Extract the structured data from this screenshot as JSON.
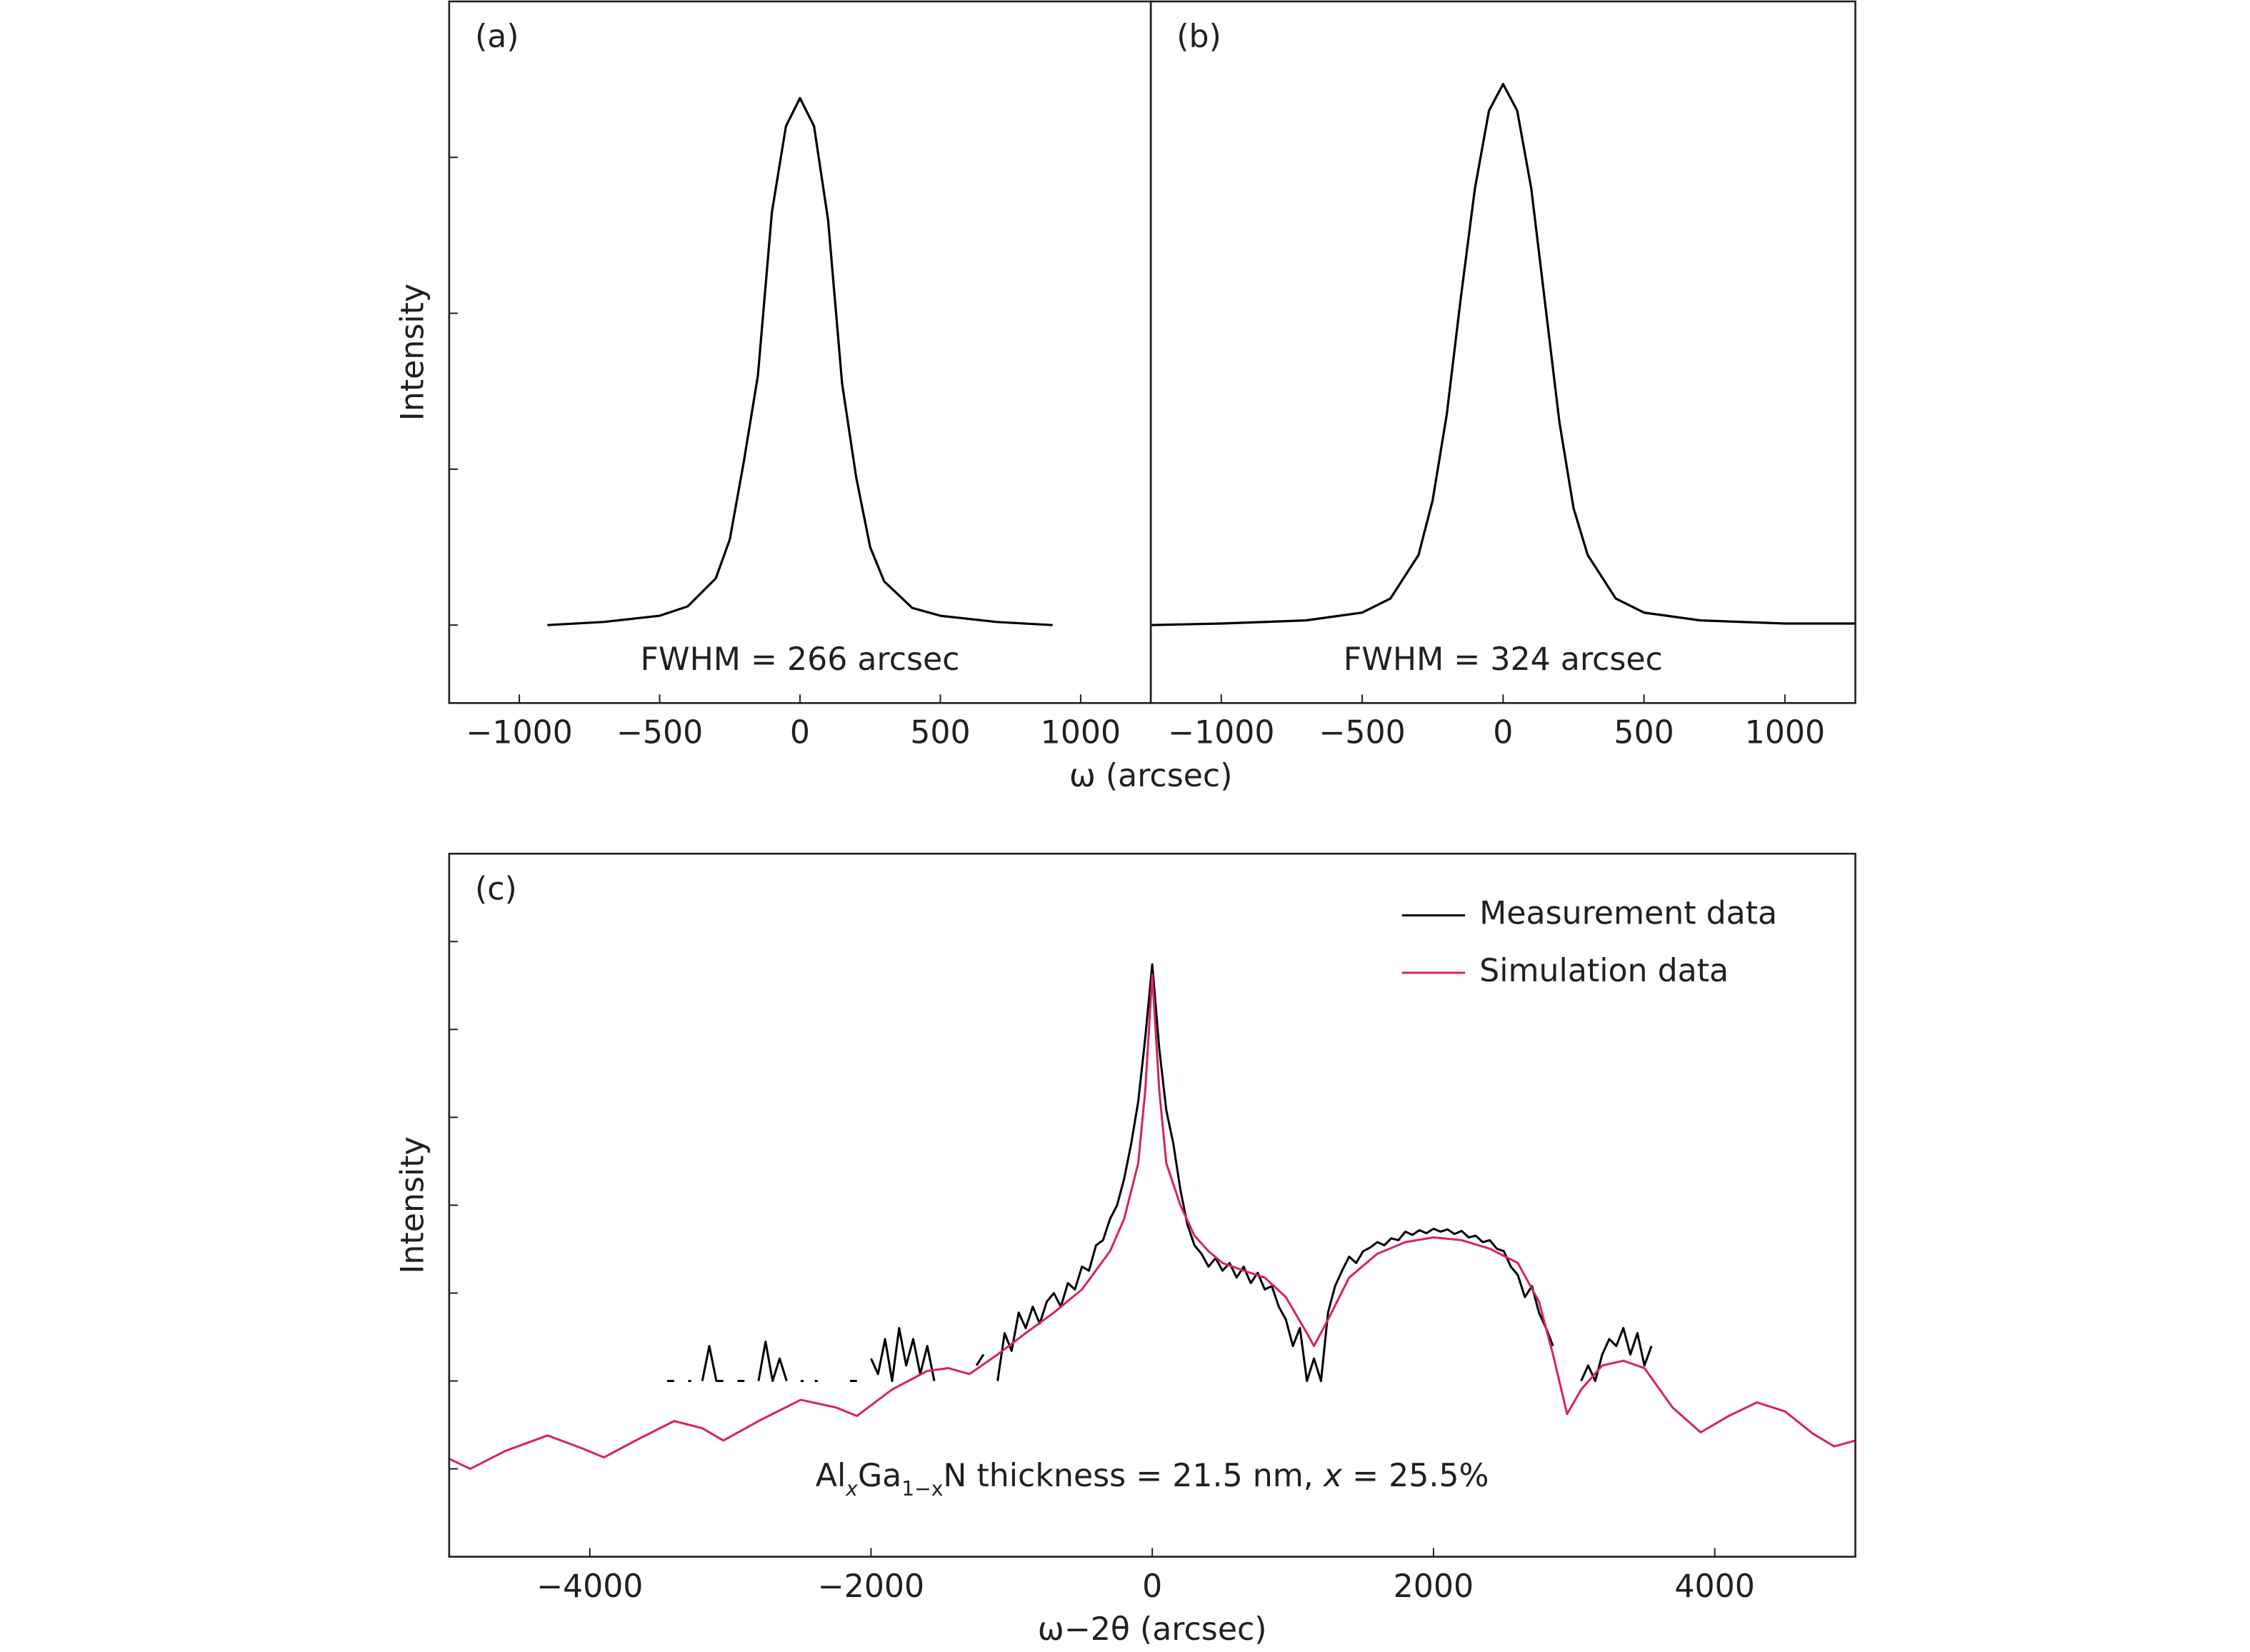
{
  "chart_data": [
    {
      "type": "line",
      "panel_label": "(a)",
      "annotation": "FWHM = 266 arcsec",
      "ylabel": "Intensity",
      "xlabel": "ω (arcsec)",
      "xlim": [
        -1250,
        1250
      ],
      "ylim": [
        -0.5,
        4
      ],
      "xticks": [
        {
          "value": -1000,
          "label": "−1000"
        },
        {
          "value": -500,
          "label": "−500"
        },
        0,
        500,
        1000
      ],
      "yticks": [
        0,
        1,
        2,
        3
      ],
      "color": "#000000",
      "x": [
        -900,
        -700,
        -500,
        -400,
        -300,
        -250,
        -200,
        -150,
        -100,
        -50,
        0,
        50,
        100,
        150,
        200,
        250,
        300,
        400,
        500,
        700,
        900
      ],
      "values": [
        0.0,
        0.02,
        0.06,
        0.12,
        0.3,
        0.55,
        1.05,
        1.6,
        2.65,
        3.2,
        3.38,
        3.2,
        2.6,
        1.55,
        0.95,
        0.5,
        0.28,
        0.11,
        0.06,
        0.02,
        0.0
      ]
    },
    {
      "type": "line",
      "panel_label": "(b)",
      "annotation": "FWHM = 324 arcsec",
      "xlim": [
        -1250,
        1250
      ],
      "ylim": [
        -0.5,
        4
      ],
      "xticks": [
        {
          "value": -1000,
          "label": "−1000"
        },
        {
          "value": -500,
          "label": "−500"
        },
        0,
        500,
        1000
      ],
      "color": "#000000",
      "x": [
        -1250,
        -1000,
        -700,
        -500,
        -400,
        -300,
        -250,
        -200,
        -150,
        -100,
        -50,
        0,
        50,
        100,
        150,
        200,
        250,
        300,
        400,
        500,
        700,
        1000,
        1250
      ],
      "values": [
        0.0,
        0.01,
        0.03,
        0.08,
        0.17,
        0.45,
        0.8,
        1.35,
        2.1,
        2.8,
        3.3,
        3.47,
        3.3,
        2.8,
        2.05,
        1.3,
        0.75,
        0.45,
        0.17,
        0.08,
        0.03,
        0.01,
        0.01
      ]
    },
    {
      "type": "line",
      "panel_label": "(c)",
      "ylabel": "Intensity",
      "xlabel": "ω−2θ (arcsec)",
      "annotation": [
        "Al",
        "x",
        "Ga",
        "1−x",
        "N thickness = 21.5 nm, ",
        "x",
        " = 25.5%"
      ],
      "xlim": [
        -5000,
        5000
      ],
      "ylim": [
        0.1,
        10000000
      ],
      "ylog": true,
      "legend": "upper right",
      "xticks": [
        {
          "value": -4000,
          "label": "−4000"
        },
        {
          "value": -2000,
          "label": "−2000"
        },
        0,
        2000,
        4000
      ],
      "yticks": [
        1,
        10,
        100,
        1000,
        10000,
        100000,
        1000000,
        10000000
      ],
      "series": [
        {
          "name": "Measurement data",
          "color": "#000000",
          "x": [
            -3450,
            -3400,
            -3350,
            -3300,
            -3250,
            -3200,
            -3150,
            -3100,
            -3050,
            -3000,
            -2950,
            -2900,
            -2850,
            -2800,
            -2750,
            -2700,
            -2650,
            -2600,
            -2550,
            -2500,
            -2450,
            -2400,
            -2350,
            -2300,
            -2250,
            -2200,
            -2150,
            -2100,
            -2050,
            -2000,
            -1950,
            -1900,
            -1850,
            -1800,
            -1750,
            -1700,
            -1650,
            -1600,
            -1550,
            -1500,
            -1450,
            -1400,
            -1350,
            -1300,
            -1250,
            -1200,
            -1150,
            -1100,
            -1050,
            -1000,
            -950,
            -900,
            -850,
            -800,
            -750,
            -700,
            -650,
            -600,
            -550,
            -500,
            -450,
            -400,
            -350,
            -300,
            -250,
            -200,
            -150,
            -100,
            -50,
            0,
            50,
            100,
            150,
            200,
            250,
            300,
            350,
            400,
            450,
            500,
            550,
            600,
            650,
            700,
            750,
            800,
            850,
            900,
            950,
            1000,
            1050,
            1100,
            1150,
            1200,
            1250,
            1300,
            1350,
            1400,
            1450,
            1500,
            1550,
            1600,
            1650,
            1700,
            1750,
            1800,
            1850,
            1900,
            1950,
            2000,
            2050,
            2100,
            2150,
            2200,
            2250,
            2300,
            2350,
            2400,
            2450,
            2500,
            2550,
            2600,
            2650,
            2700,
            2750,
            2800,
            2850,
            2900,
            2950,
            3000,
            3050,
            3100,
            3150,
            3200,
            3250,
            3300,
            3350,
            3400,
            3450,
            3500,
            3550
          ],
          "values": [
            10,
            10,
            null,
            10,
            null,
            10,
            25,
            10,
            10,
            null,
            10,
            10,
            null,
            10,
            28,
            10,
            18,
            10,
            null,
            10,
            null,
            10,
            null,
            null,
            null,
            null,
            10,
            10,
            null,
            18,
            12,
            30,
            10,
            40,
            15,
            30,
            12,
            25,
            10,
            null,
            null,
            null,
            null,
            null,
            15,
            20,
            null,
            10,
            35,
            22,
            60,
            40,
            70,
            45,
            80,
            100,
            70,
            130,
            110,
            200,
            180,
            350,
            400,
            700,
            1000,
            2000,
            5000,
            15000,
            80000,
            550000,
            60000,
            12000,
            5000,
            1500,
            600,
            350,
            280,
            200,
            250,
            180,
            220,
            150,
            200,
            130,
            170,
            110,
            120,
            70,
            50,
            25,
            40,
            10,
            18,
            10,
            60,
            120,
            180,
            260,
            220,
            300,
            330,
            380,
            350,
            420,
            400,
            500,
            460,
            520,
            480,
            540,
            500,
            530,
            470,
            510,
            430,
            450,
            380,
            400,
            320,
            300,
            200,
            160,
            90,
            120,
            60,
            40,
            25,
            null,
            null,
            null,
            10,
            15,
            10,
            20,
            30,
            25,
            40,
            20,
            35,
            15,
            25
          ]
        },
        {
          "name": "Simulation data",
          "color": "#d6245b",
          "x": [
            -5000,
            -4850,
            -4600,
            -4300,
            -4050,
            -3900,
            -3650,
            -3400,
            -3200,
            -3050,
            -2800,
            -2500,
            -2250,
            -2100,
            -1850,
            -1600,
            -1450,
            -1300,
            -1100,
            -900,
            -700,
            -500,
            -300,
            -200,
            -100,
            -50,
            0,
            50,
            100,
            200,
            300,
            400,
            500,
            650,
            800,
            950,
            1100,
            1150,
            1250,
            1400,
            1600,
            1800,
            2000,
            2200,
            2400,
            2600,
            2750,
            2850,
            2950,
            3050,
            3200,
            3350,
            3500,
            3700,
            3900,
            4100,
            4300,
            4500,
            4700,
            4850,
            5000
          ],
          "values": [
            1.3,
            1.0,
            1.6,
            2.4,
            1.7,
            1.35,
            2.2,
            3.5,
            2.9,
            2.1,
            3.5,
            6.1,
            5.0,
            4.0,
            8,
            13,
            14,
            12,
            20,
            35,
            60,
            110,
            300,
            700,
            3000,
            20000,
            420000,
            20000,
            3000,
            1000,
            450,
            300,
            220,
            180,
            150,
            90,
            35,
            25,
            50,
            150,
            280,
            380,
            430,
            400,
            320,
            220,
            80,
            20,
            4.2,
            8,
            15,
            17,
            14,
            5,
            2.6,
            4,
            5.7,
            4.5,
            2.5,
            1.8,
            2.1
          ]
        }
      ]
    }
  ]
}
